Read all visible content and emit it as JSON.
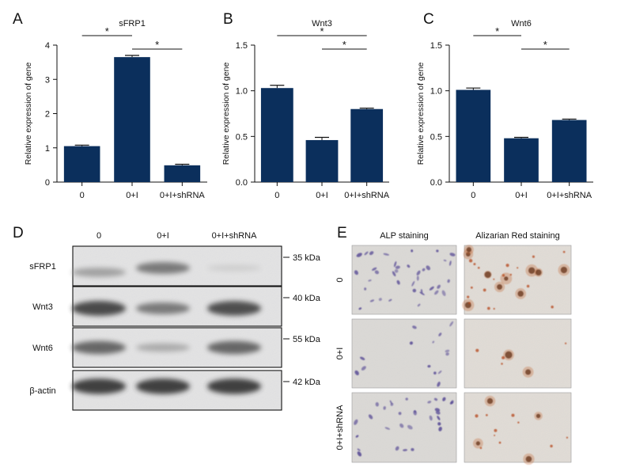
{
  "figure": {
    "panel_labels": [
      "A",
      "B",
      "C",
      "D",
      "E"
    ]
  },
  "chart_data": [
    {
      "type": "bar",
      "title": "sFRP1",
      "ylabel": "Relative expression of gene",
      "categories": [
        "0",
        "0+I",
        "0+I+shRNA"
      ],
      "values": [
        1.05,
        3.65,
        0.49
      ],
      "errors": [
        0.03,
        0.05,
        0.03
      ],
      "ylim": [
        0,
        4
      ],
      "yticks": [
        "0",
        "1",
        "2",
        "3",
        "4"
      ],
      "significance": [
        [
          "0",
          "0+I",
          "*"
        ],
        [
          "0+I",
          "0+I+shRNA",
          "*"
        ]
      ],
      "bar_color": "#0b2f5c"
    },
    {
      "type": "bar",
      "title": "Wnt3",
      "ylabel": "Relative expression of gene",
      "categories": [
        "0",
        "0+I",
        "0+I+shRNA"
      ],
      "values": [
        1.03,
        0.46,
        0.8
      ],
      "errors": [
        0.03,
        0.03,
        0.01
      ],
      "ylim": [
        0,
        1.5
      ],
      "yticks": [
        "0.0",
        "0.5",
        "1.0",
        "1.5"
      ],
      "significance": [
        [
          "0",
          "0+I+shRNA",
          "*"
        ],
        [
          "0+I",
          "0+I+shRNA",
          "*"
        ]
      ],
      "bar_color": "#0b2f5c"
    },
    {
      "type": "bar",
      "title": "Wnt6",
      "ylabel": "Relative expression of gene",
      "categories": [
        "0",
        "0+I",
        "0+I+shRNA"
      ],
      "values": [
        1.01,
        0.48,
        0.68
      ],
      "errors": [
        0.02,
        0.01,
        0.01
      ],
      "ylim": [
        0,
        1.5
      ],
      "yticks": [
        "0.0",
        "0.5",
        "1.0",
        "1.5"
      ],
      "significance": [
        [
          "0",
          "0+I",
          "*"
        ],
        [
          "0+I",
          "0+I+shRNA",
          "*"
        ]
      ],
      "bar_color": "#0b2f5c"
    }
  ],
  "western_blot": {
    "lanes": [
      "0",
      "0+I",
      "0+I+shRNA"
    ],
    "rows": [
      {
        "protein": "sFRP1",
        "size": "35 kDa",
        "intensity": [
          0.35,
          0.55,
          0.12
        ]
      },
      {
        "protein": "Wnt3",
        "size": "40 kDa",
        "intensity": [
          0.8,
          0.55,
          0.78
        ]
      },
      {
        "protein": "Wnt6",
        "size": "55 kDa",
        "intensity": [
          0.65,
          0.3,
          0.65
        ]
      },
      {
        "protein": "β-actin",
        "size": "42 kDa",
        "intensity": [
          0.85,
          0.85,
          0.85
        ]
      }
    ]
  },
  "staining": {
    "columns": [
      "ALP staining",
      "Alizarian Red staining"
    ],
    "rows": [
      "0",
      "0+I",
      "0+I+shRNA"
    ]
  }
}
